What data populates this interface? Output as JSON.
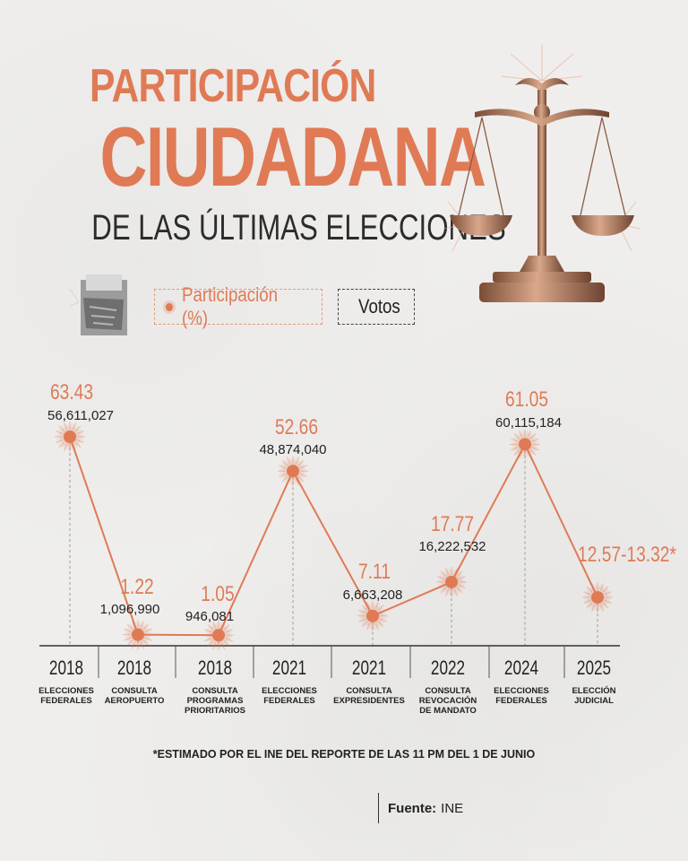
{
  "title": {
    "line1": "PARTICIPACIÓN",
    "line2": "CIUDADANA",
    "line3": "DE LAS ÚLTIMAS ELECCIONES"
  },
  "legend": {
    "participation": "Participación (%)",
    "votes": "Votos"
  },
  "colors": {
    "accent": "#e07a55",
    "text": "#222222",
    "axis": "#333333"
  },
  "chart_data": {
    "type": "line",
    "categories": [
      {
        "year": "2018",
        "label": "ELECCIONES FEDERALES"
      },
      {
        "year": "2018",
        "label": "CONSULTA AEROPUERTO"
      },
      {
        "year": "2018",
        "label": "CONSULTA PROGRAMAS PRIORITARIOS"
      },
      {
        "year": "2021",
        "label": "ELECCIONES FEDERALES"
      },
      {
        "year": "2021",
        "label": "CONSULTA EXPRESIDENTES"
      },
      {
        "year": "2022",
        "label": "CONSULTA REVOCACIÓN DE MANDATO"
      },
      {
        "year": "2024",
        "label": "ELECCIONES FEDERALES"
      },
      {
        "year": "2025",
        "label": "ELECCIÓN JUDICIAL"
      }
    ],
    "series": [
      {
        "name": "Participación (%)",
        "values": [
          63.43,
          1.22,
          1.05,
          52.66,
          7.11,
          17.77,
          61.05,
          12.945
        ],
        "labels": [
          "63.43",
          "1.22",
          "1.05",
          "52.66",
          "7.11",
          "17.77",
          "61.05",
          "12.57-13.32*"
        ]
      },
      {
        "name": "Votos",
        "values": [
          56611027,
          1096990,
          946081,
          48874040,
          6663208,
          16222532,
          60115184,
          null
        ],
        "labels": [
          "56,611,027",
          "1,096,990",
          "946,081",
          "48,874,040",
          "6,663,208",
          "16,222,532",
          "60,115,184",
          ""
        ]
      }
    ],
    "legend_position": "top-left",
    "grid": false
  },
  "footnote": "*ESTIMADO POR EL INE DEL REPORTE DE LAS 11 PM DEL 1 DE JUNIO",
  "source": {
    "label": "Fuente:",
    "value": "INE"
  }
}
